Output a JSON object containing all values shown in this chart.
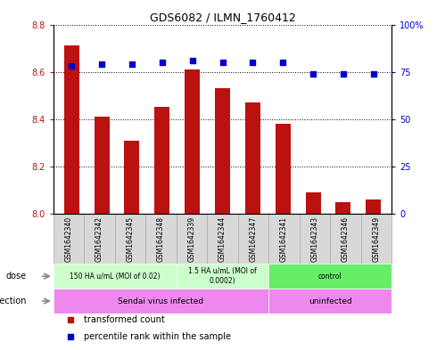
{
  "title": "GDS6082 / ILMN_1760412",
  "samples": [
    "GSM1642340",
    "GSM1642342",
    "GSM1642345",
    "GSM1642348",
    "GSM1642339",
    "GSM1642344",
    "GSM1642347",
    "GSM1642341",
    "GSM1642343",
    "GSM1642346",
    "GSM1642349"
  ],
  "bar_values": [
    8.71,
    8.41,
    8.31,
    8.45,
    8.61,
    8.53,
    8.47,
    8.38,
    8.09,
    8.05,
    8.06
  ],
  "scatter_values": [
    78,
    79,
    79,
    80,
    81,
    80,
    80,
    80,
    74,
    74,
    74
  ],
  "bar_color": "#bb1111",
  "scatter_color": "#0000cc",
  "ylim_left": [
    8.0,
    8.8
  ],
  "ylim_right": [
    0,
    100
  ],
  "yticks_left": [
    8.0,
    8.2,
    8.4,
    8.6,
    8.8
  ],
  "yticks_right": [
    0,
    25,
    50,
    75,
    100
  ],
  "ytick_labels_right": [
    "0",
    "25",
    "50",
    "75",
    "100%"
  ],
  "dose_groups": [
    {
      "text": "150 HA u/mL (MOI of 0.02)",
      "start": 0,
      "end": 4,
      "color": "#ccffcc"
    },
    {
      "text": "1.5 HA u/mL (MOI of\n0.0002)",
      "start": 4,
      "end": 7,
      "color": "#ccffcc"
    },
    {
      "text": "control",
      "start": 7,
      "end": 11,
      "color": "#66ee66"
    }
  ],
  "infection_groups": [
    {
      "text": "Sendai virus infected",
      "start": 0,
      "end": 7,
      "color": "#ee88ee"
    },
    {
      "text": "uninfected",
      "start": 7,
      "end": 11,
      "color": "#ee88ee"
    }
  ],
  "legend_items": [
    {
      "label": "transformed count",
      "color": "#bb1111"
    },
    {
      "label": "percentile rank within the sample",
      "color": "#0000cc"
    }
  ],
  "sample_cell_color": "#d8d8d8",
  "sample_cell_edge": "#aaaaaa",
  "background_color": "#ffffff"
}
